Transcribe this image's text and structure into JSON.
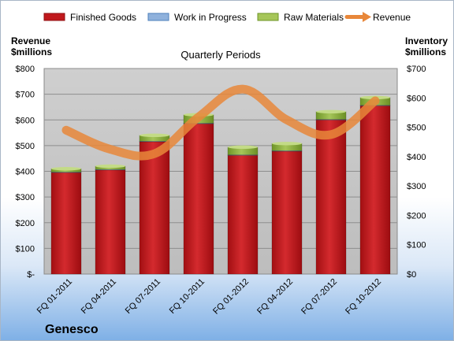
{
  "chart_data": {
    "type": "bar",
    "stacked": true,
    "title": "Quarterly Periods",
    "company": "Genesco",
    "left_axis_title": [
      "Revenue",
      "$millions"
    ],
    "right_axis_title": [
      "Inventory",
      "$millions"
    ],
    "categories": [
      "FQ 01-2011",
      "FQ 04-2011",
      "FQ 07-2011",
      "FQ 10-2011",
      "FQ 01-2012",
      "FQ 04-2012",
      "FQ 07-2012",
      "FQ 10-2012"
    ],
    "left_ticks": [
      "$-",
      "$100",
      "$200",
      "$300",
      "$400",
      "$500",
      "$600",
      "$700",
      "$800"
    ],
    "right_ticks": [
      "$0",
      "$100",
      "$200",
      "$300",
      "$400",
      "$500",
      "$600",
      "$700"
    ],
    "left_ylim": [
      0,
      800
    ],
    "right_ylim": [
      0,
      700
    ],
    "legend_position": "top",
    "grid": true,
    "series": [
      {
        "name": "Finished Goods",
        "axis": "left",
        "type": "bar",
        "color": "#c0181c",
        "values": [
          395,
          405,
          515,
          585,
          462,
          478,
          600,
          655
        ]
      },
      {
        "name": "Work in Progress",
        "axis": "left",
        "type": "bar",
        "color": "#4f81bd",
        "values": [
          2,
          2,
          2,
          2,
          2,
          2,
          2,
          2
        ]
      },
      {
        "name": "Raw Materials",
        "axis": "left",
        "type": "bar",
        "color": "#8cb23c",
        "values": [
          13,
          13,
          23,
          33,
          30,
          28,
          30,
          30
        ]
      },
      {
        "name": "Revenue",
        "axis": "right",
        "type": "line",
        "color": "#e8873a",
        "values": [
          490,
          425,
          410,
          535,
          630,
          525,
          475,
          590
        ]
      }
    ]
  }
}
